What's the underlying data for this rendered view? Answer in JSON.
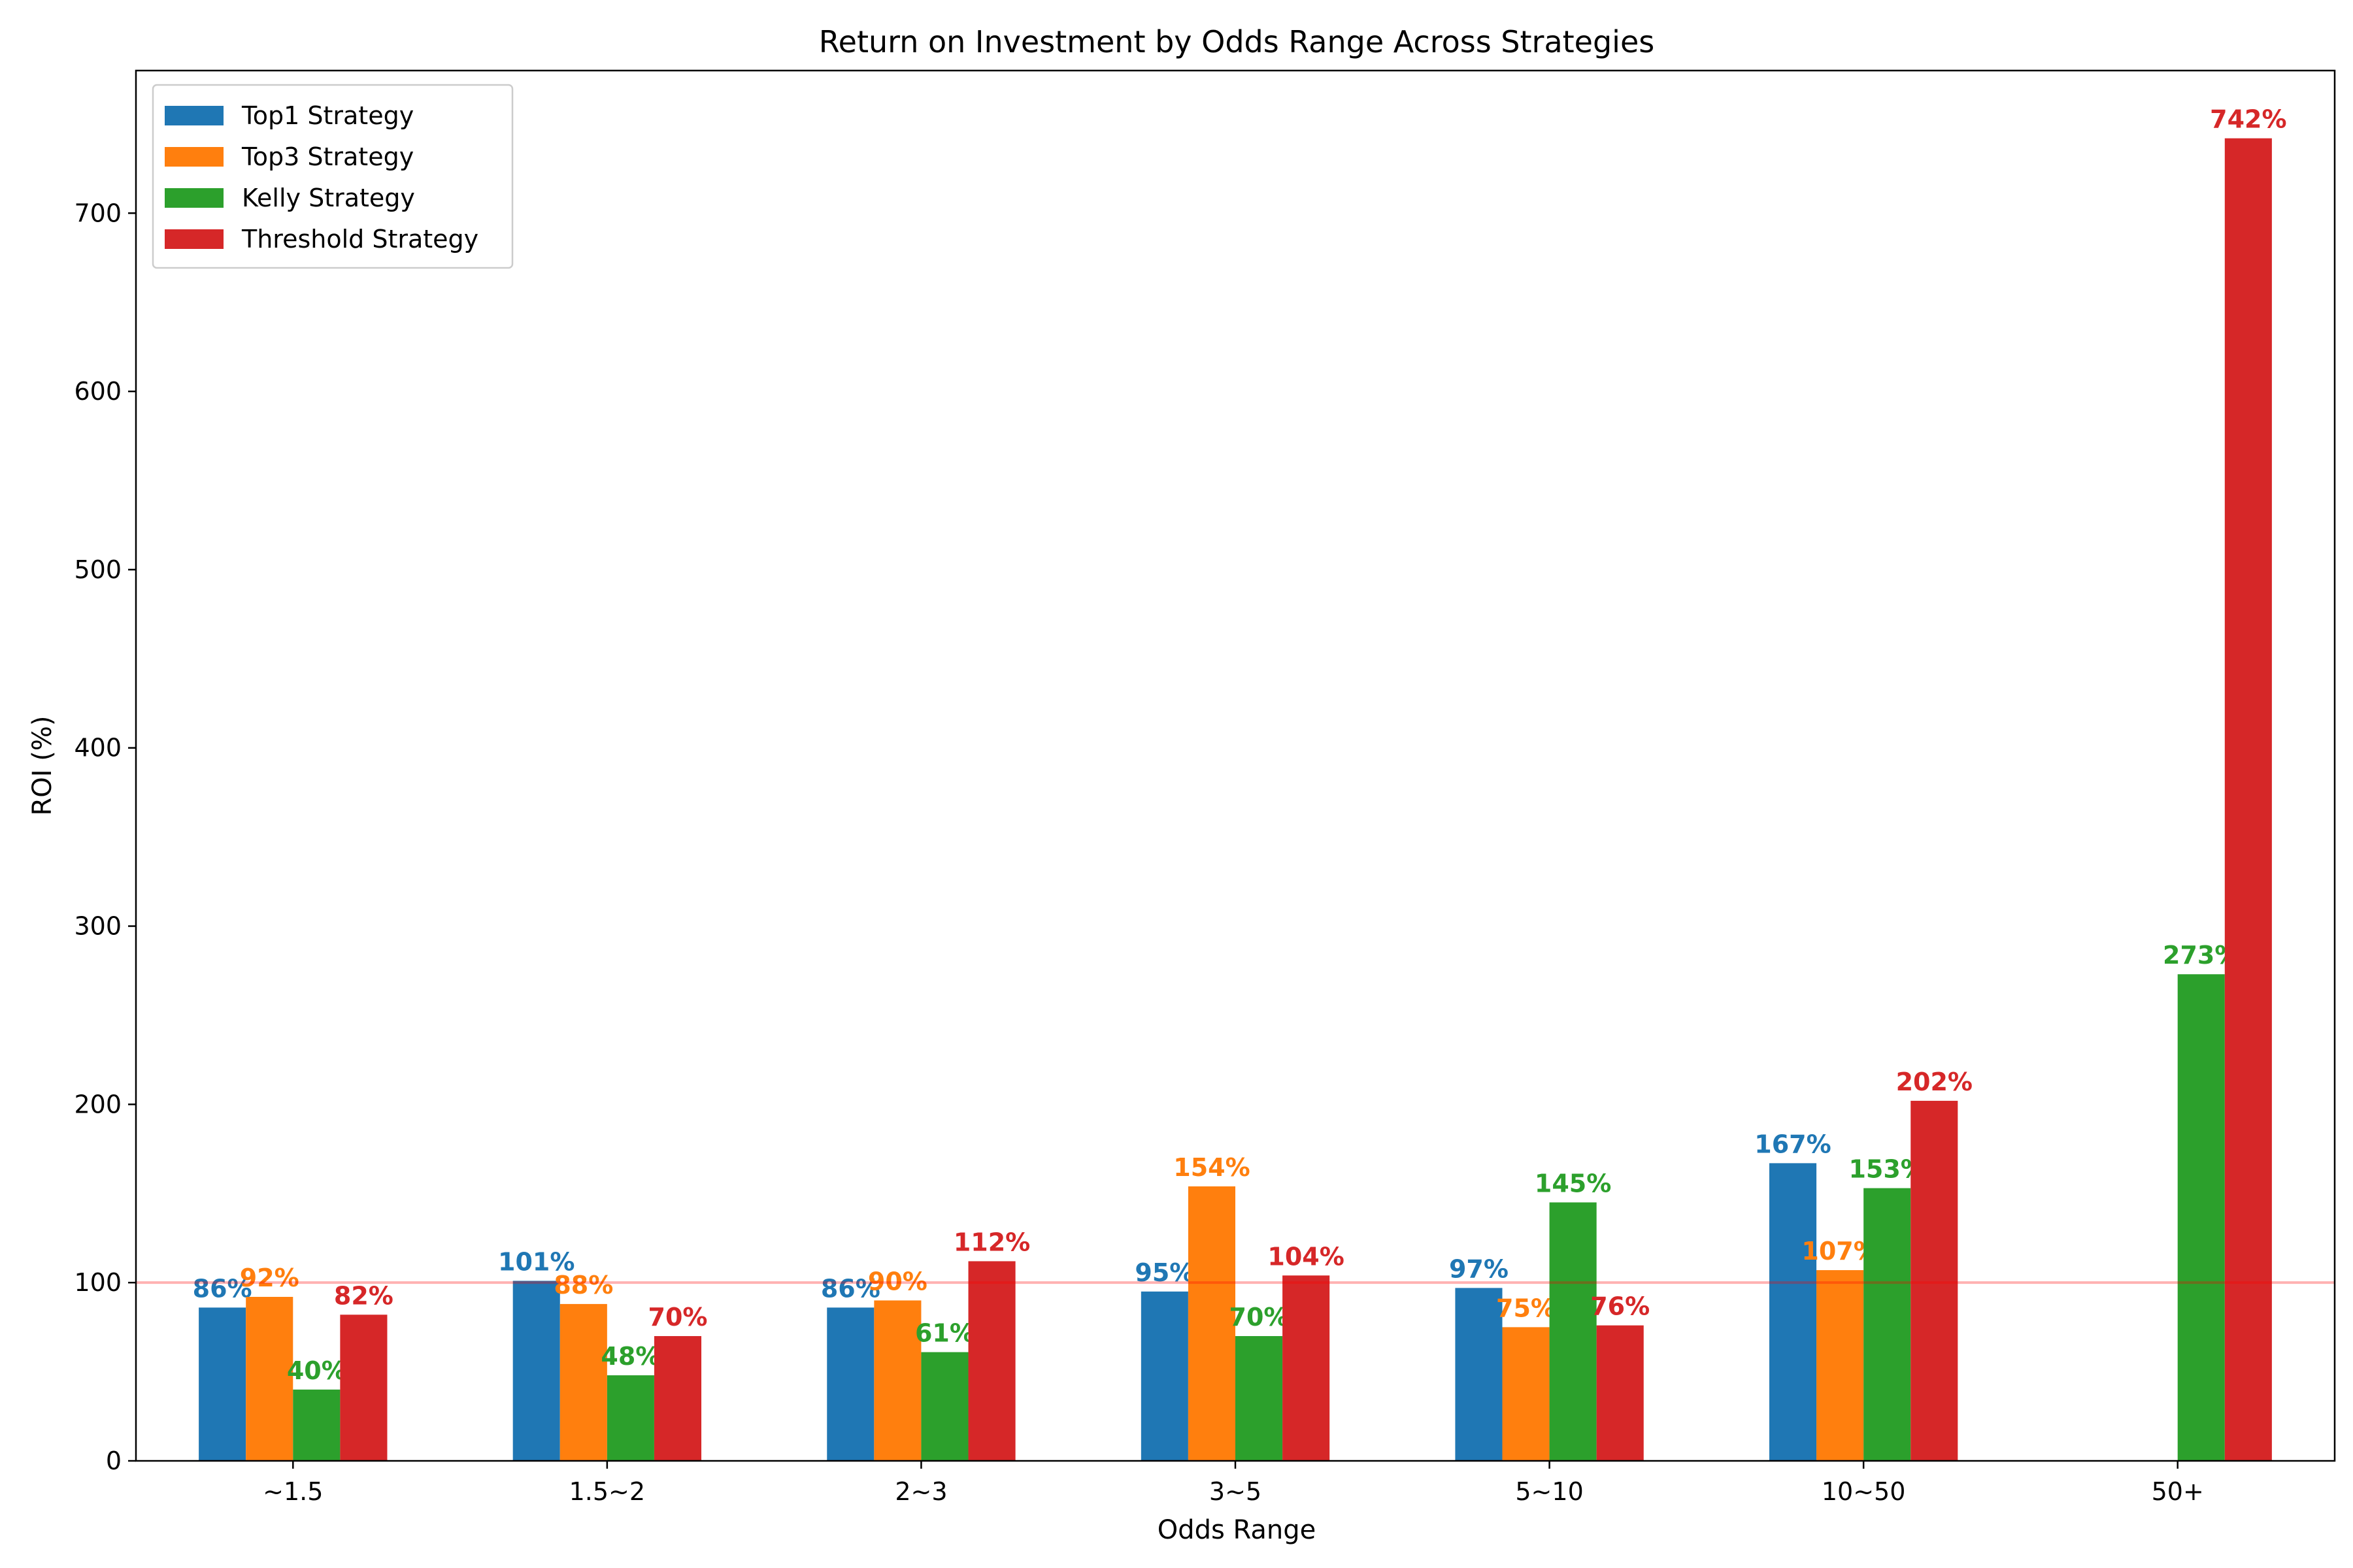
{
  "chart_data": {
    "type": "bar",
    "title": "Return on Investment by Odds Range Across Strategies",
    "xlabel": "Odds Range",
    "ylabel": "ROI (%)",
    "categories": [
      "~1.5",
      "1.5~2",
      "2~3",
      "3~5",
      "5~10",
      "10~50",
      "50+"
    ],
    "ylim": [
      0,
      780
    ],
    "yticks": [
      0,
      100,
      200,
      300,
      400,
      500,
      600,
      700
    ],
    "reference_line": {
      "value": 100,
      "color": "#ff0000"
    },
    "legend_position": "upper left",
    "grid": false,
    "series": [
      {
        "name": "Top1 Strategy",
        "color": "#1f77b4",
        "values": [
          86,
          101,
          86,
          95,
          97,
          167,
          null
        ],
        "labels": [
          "86%",
          "101%",
          "86%",
          "95%",
          "97%",
          "167%",
          ""
        ]
      },
      {
        "name": "Top3 Strategy",
        "color": "#ff7f0e",
        "values": [
          92,
          88,
          90,
          154,
          75,
          107,
          null
        ],
        "labels": [
          "92%",
          "88%",
          "90%",
          "154%",
          "75%",
          "107%",
          ""
        ]
      },
      {
        "name": "Kelly Strategy",
        "color": "#2ca02c",
        "values": [
          40,
          48,
          61,
          70,
          145,
          153,
          273
        ],
        "labels": [
          "40%",
          "48%",
          "61%",
          "70%",
          "145%",
          "153%",
          "273%"
        ]
      },
      {
        "name": "Threshold Strategy",
        "color": "#d62728",
        "values": [
          82,
          70,
          112,
          104,
          76,
          202,
          742
        ],
        "labels": [
          "82%",
          "70%",
          "112%",
          "104%",
          "76%",
          "202%",
          "742%"
        ]
      }
    ]
  }
}
